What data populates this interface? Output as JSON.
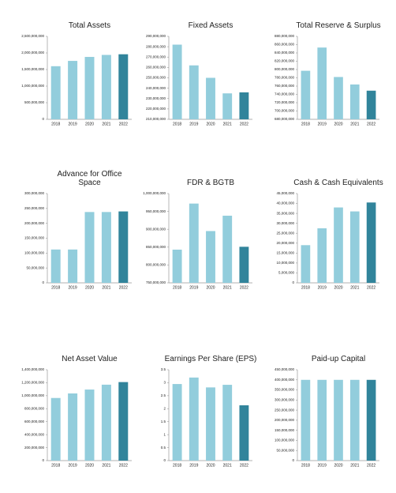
{
  "chart_data": [
    {
      "type": "bar",
      "title": "Total Assets",
      "categories": [
        "2018",
        "2019",
        "2020",
        "2021",
        "2022"
      ],
      "values": [
        1600000000,
        1760000000,
        1880000000,
        1940000000,
        1960000000
      ],
      "colors": [
        "#92cddc",
        "#92cddc",
        "#92cddc",
        "#92cddc",
        "#31849b"
      ],
      "ylim": [
        0,
        2500000000
      ],
      "yticks": [
        0,
        {
          "value": 500000000,
          "label": "500,000,000"
        },
        {
          "value": 1000000000,
          "label": "1,000,000,000"
        },
        {
          "value": 1500000000,
          "label": "1,500,000,000"
        },
        {
          "value": 2000000000,
          "label": "2,000,000,000"
        },
        {
          "value": 2500000000,
          "label": "2,500,000,000"
        }
      ]
    },
    {
      "type": "bar",
      "title": "Fixed Assets",
      "categories": [
        "2018",
        "2019",
        "2020",
        "2021",
        "2022"
      ],
      "values": [
        282000000,
        262000000,
        250000000,
        235000000,
        236000000
      ],
      "colors": [
        "#92cddc",
        "#92cddc",
        "#92cddc",
        "#92cddc",
        "#31849b"
      ],
      "ylim": [
        210000000,
        290000000
      ],
      "yticks": [
        {
          "value": 210000000,
          "label": "210,000,000"
        },
        {
          "value": 220000000,
          "label": "220,000,000"
        },
        {
          "value": 230000000,
          "label": "230,000,000"
        },
        {
          "value": 240000000,
          "label": "240,000,000"
        },
        {
          "value": 250000000,
          "label": "250,000,000"
        },
        {
          "value": 260000000,
          "label": "260,000,000"
        },
        {
          "value": 270000000,
          "label": "270,000,000"
        },
        {
          "value": 280000000,
          "label": "280,000,000"
        },
        {
          "value": 290000000,
          "label": "290,000,000"
        }
      ]
    },
    {
      "type": "bar",
      "title": "Total Reserve & Surplus",
      "categories": [
        "2018",
        "2019",
        "2020",
        "2021",
        "2022"
      ],
      "values": [
        797000000,
        853000000,
        782000000,
        764000000,
        749000000
      ],
      "colors": [
        "#92cddc",
        "#92cddc",
        "#92cddc",
        "#92cddc",
        "#31849b"
      ],
      "ylim": [
        680000000,
        880000000
      ],
      "yticks": [
        {
          "value": 680000000,
          "label": "680,000,000"
        },
        {
          "value": 700000000,
          "label": "700,000,000"
        },
        {
          "value": 720000000,
          "label": "720,000,000"
        },
        {
          "value": 740000000,
          "label": "740,000,000"
        },
        {
          "value": 760000000,
          "label": "760,000,000"
        },
        {
          "value": 780000000,
          "label": "780,000,000"
        },
        {
          "value": 800000000,
          "label": "800,000,000"
        },
        {
          "value": 820000000,
          "label": "820,000,000"
        },
        {
          "value": 840000000,
          "label": "840,000,000"
        },
        {
          "value": 860000000,
          "label": "860,000,000"
        },
        {
          "value": 880000000,
          "label": "880,000,000"
        }
      ]
    },
    {
      "type": "bar",
      "title": "Advance for Office Space",
      "categories": [
        "2018",
        "2019",
        "2020",
        "2021",
        "2022"
      ],
      "values": [
        112000000,
        112000000,
        238000000,
        238000000,
        240000000
      ],
      "colors": [
        "#92cddc",
        "#92cddc",
        "#92cddc",
        "#92cddc",
        "#31849b"
      ],
      "ylim": [
        0,
        300000000
      ],
      "yticks": [
        0,
        {
          "value": 50000000,
          "label": "50,000,000"
        },
        {
          "value": 100000000,
          "label": "100,000,000"
        },
        {
          "value": 150000000,
          "label": "150,000,000"
        },
        {
          "value": 200000000,
          "label": "200,000,000"
        },
        {
          "value": 250000000,
          "label": "250,000,000"
        },
        {
          "value": 300000000,
          "label": "300,000,000"
        }
      ]
    },
    {
      "type": "bar",
      "title": "FDR & BGTB",
      "categories": [
        "2018",
        "2019",
        "2020",
        "2021",
        "2022"
      ],
      "values": [
        843000000,
        972000000,
        895000000,
        938000000,
        851000000
      ],
      "colors": [
        "#92cddc",
        "#92cddc",
        "#92cddc",
        "#92cddc",
        "#31849b"
      ],
      "ylim": [
        750000000,
        1000000000
      ],
      "yticks": [
        {
          "value": 750000000,
          "label": "750,000,000"
        },
        {
          "value": 800000000,
          "label": "800,000,000"
        },
        {
          "value": 850000000,
          "label": "850,000,000"
        },
        {
          "value": 900000000,
          "label": "900,000,000"
        },
        {
          "value": 950000000,
          "label": "950,000,000"
        },
        {
          "value": 1000000000,
          "label": "1,000,000,000"
        }
      ]
    },
    {
      "type": "bar",
      "title": "Cash & Cash Equivalents",
      "categories": [
        "2018",
        "2019",
        "2020",
        "2021",
        "2022"
      ],
      "values": [
        19000000,
        27500000,
        38000000,
        36000000,
        40500000
      ],
      "colors": [
        "#92cddc",
        "#92cddc",
        "#92cddc",
        "#92cddc",
        "#31849b"
      ],
      "ylim": [
        0,
        45000000
      ],
      "yticks": [
        0,
        {
          "value": 5000000,
          "label": "5,000,000"
        },
        {
          "value": 10000000,
          "label": "10,000,000"
        },
        {
          "value": 15000000,
          "label": "15,000,000"
        },
        {
          "value": 20000000,
          "label": "20,000,000"
        },
        {
          "value": 25000000,
          "label": "25,000,000"
        },
        {
          "value": 30000000,
          "label": "30,000,000"
        },
        {
          "value": 35000000,
          "label": "35,000,000"
        },
        {
          "value": 40000000,
          "label": "40,000,000"
        },
        {
          "value": 45000000,
          "label": "45,000,000"
        }
      ]
    },
    {
      "type": "bar",
      "title": "Net Asset Value",
      "categories": [
        "2018",
        "2019",
        "2020",
        "2021",
        "2022"
      ],
      "values": [
        965000000,
        1035000000,
        1095000000,
        1170000000,
        1210000000
      ],
      "colors": [
        "#92cddc",
        "#92cddc",
        "#92cddc",
        "#92cddc",
        "#31849b"
      ],
      "ylim": [
        0,
        1400000000
      ],
      "yticks": [
        0,
        {
          "value": 200000000,
          "label": "200,000,000"
        },
        {
          "value": 400000000,
          "label": "400,000,000"
        },
        {
          "value": 600000000,
          "label": "600,000,000"
        },
        {
          "value": 800000000,
          "label": "800,000,000"
        },
        {
          "value": 1000000000,
          "label": "1,000,000,000"
        },
        {
          "value": 1200000000,
          "label": "1,200,000,000"
        },
        {
          "value": 1400000000,
          "label": "1,400,000,000"
        }
      ]
    },
    {
      "type": "bar",
      "title": "Earnings Per Share (EPS)",
      "categories": [
        "2018",
        "2019",
        "2020",
        "2021",
        "2022"
      ],
      "values": [
        2.95,
        3.2,
        2.82,
        2.92,
        2.13
      ],
      "colors": [
        "#92cddc",
        "#92cddc",
        "#92cddc",
        "#92cddc",
        "#31849b"
      ],
      "ylim": [
        0,
        3.5
      ],
      "yticks": [
        0,
        0.5,
        1,
        1.5,
        2,
        2.5,
        3,
        3.5
      ]
    },
    {
      "type": "bar",
      "title": "Paid-up Capital",
      "categories": [
        "2018",
        "2019",
        "2020",
        "2021",
        "2022"
      ],
      "values": [
        400000000,
        400000000,
        400000000,
        400000000,
        400000000
      ],
      "colors": [
        "#92cddc",
        "#92cddc",
        "#92cddc",
        "#92cddc",
        "#31849b"
      ],
      "ylim": [
        0,
        450000000
      ],
      "yticks": [
        0,
        {
          "value": 50000000,
          "label": "50,000,000"
        },
        {
          "value": 100000000,
          "label": "100,000,000"
        },
        {
          "value": 150000000,
          "label": "150,000,000"
        },
        {
          "value": 200000000,
          "label": "200,000,000"
        },
        {
          "value": 250000000,
          "label": "250,000,000"
        },
        {
          "value": 300000000,
          "label": "300,000,000"
        },
        {
          "value": 350000000,
          "label": "350,000,000"
        },
        {
          "value": 400000000,
          "label": "400,000,000"
        },
        {
          "value": 450000000,
          "label": "450,000,000"
        }
      ]
    }
  ]
}
